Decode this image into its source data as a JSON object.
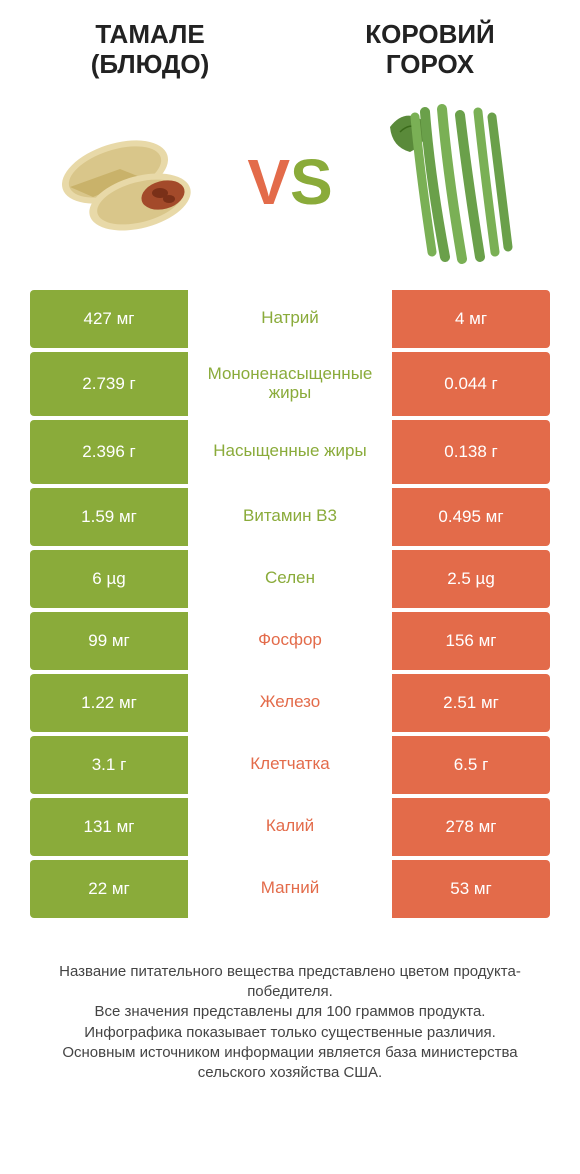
{
  "colors": {
    "green": "#8aab3a",
    "orange": "#e36b4a",
    "green_loser": "#8aab3a",
    "orange_loser": "#e36b4a",
    "label_green": "#8aab3a",
    "label_orange": "#e36b4a",
    "footer_text": "#444444"
  },
  "header": {
    "left_line1": "ТАМАЛЕ",
    "left_line2": "(БЛЮДО)",
    "right_line1": "КОРОВИЙ",
    "right_line2": "ГОРОХ"
  },
  "vs": {
    "v": "V",
    "s": "S"
  },
  "rows": [
    {
      "left": "427 мг",
      "label": "Натрий",
      "right": "4 мг",
      "winner": "left"
    },
    {
      "left": "2.739 г",
      "label": "Мононенасыщенные жиры",
      "right": "0.044 г",
      "winner": "left"
    },
    {
      "left": "2.396 г",
      "label": "Насыщенные жиры",
      "right": "0.138 г",
      "winner": "left"
    },
    {
      "left": "1.59 мг",
      "label": "Витамин B3",
      "right": "0.495 мг",
      "winner": "left"
    },
    {
      "left": "6 µg",
      "label": "Селен",
      "right": "2.5 µg",
      "winner": "left"
    },
    {
      "left": "99 мг",
      "label": "Фосфор",
      "right": "156 мг",
      "winner": "right"
    },
    {
      "left": "1.22 мг",
      "label": "Железо",
      "right": "2.51 мг",
      "winner": "right"
    },
    {
      "left": "3.1 г",
      "label": "Клетчатка",
      "right": "6.5 г",
      "winner": "right"
    },
    {
      "left": "131 мг",
      "label": "Калий",
      "right": "278 мг",
      "winner": "right"
    },
    {
      "left": "22 мг",
      "label": "Магний",
      "right": "53 мг",
      "winner": "right"
    }
  ],
  "footer": {
    "line1": "Название питательного вещества представлено цветом продукта-победителя.",
    "line2": "Все значения представлены для 100 граммов продукта.",
    "line3": "Инфографика показывает только существенные различия.",
    "line4": "Основным источником информации является база министерства сельского хозяйства США."
  }
}
